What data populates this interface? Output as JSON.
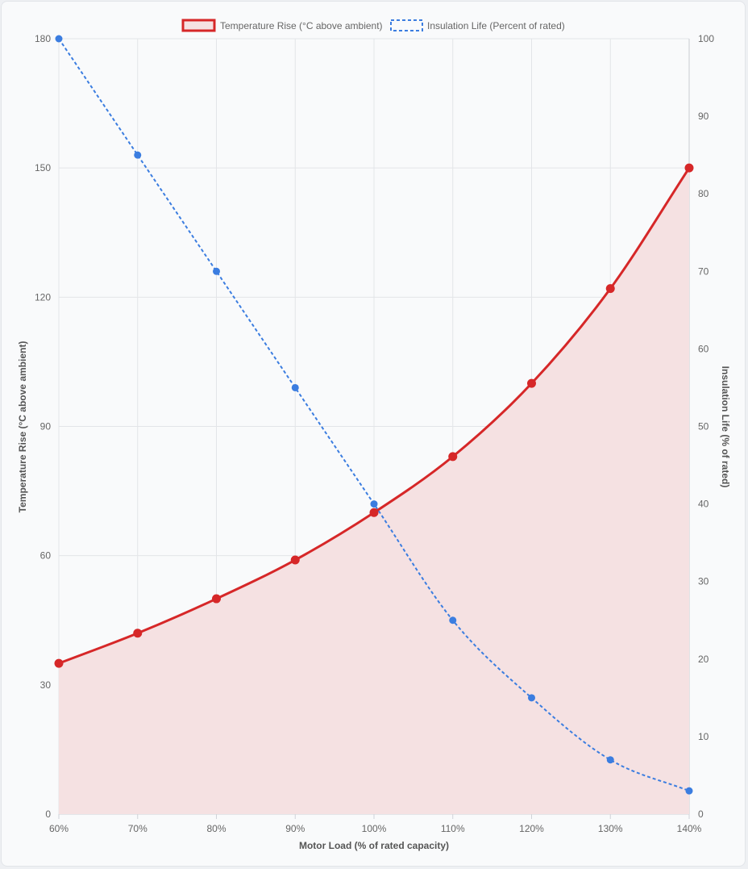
{
  "chart_data": {
    "type": "line",
    "categories": [
      "60%",
      "70%",
      "80%",
      "90%",
      "100%",
      "110%",
      "120%",
      "130%",
      "140%"
    ],
    "xlabel": "Motor Load (% of rated capacity)",
    "y_left": {
      "label": "Temperature Rise (°C above ambient)",
      "min": 0,
      "max": 180,
      "ticks": [
        0,
        30,
        60,
        90,
        120,
        150,
        180
      ]
    },
    "y_right": {
      "label": "Insulation Life (% of rated)",
      "min": 0,
      "max": 100,
      "ticks": [
        0,
        10,
        20,
        30,
        40,
        50,
        60,
        70,
        80,
        90,
        100
      ]
    },
    "series": [
      {
        "name": "Temperature Rise (°C above ambient)",
        "axis": "left",
        "values": [
          35,
          42,
          50,
          59,
          70,
          83,
          100,
          122,
          150
        ],
        "color": "#d62728",
        "fill": "#f5e1e2",
        "style": "solid"
      },
      {
        "name": "Insulation Life (Percent of rated)",
        "axis": "right",
        "values": [
          100,
          85,
          70,
          55,
          40,
          25,
          15,
          7,
          3
        ],
        "color": "#3b7de0",
        "style": "dashed"
      }
    ],
    "legend_position": "top-center",
    "grid": true
  }
}
